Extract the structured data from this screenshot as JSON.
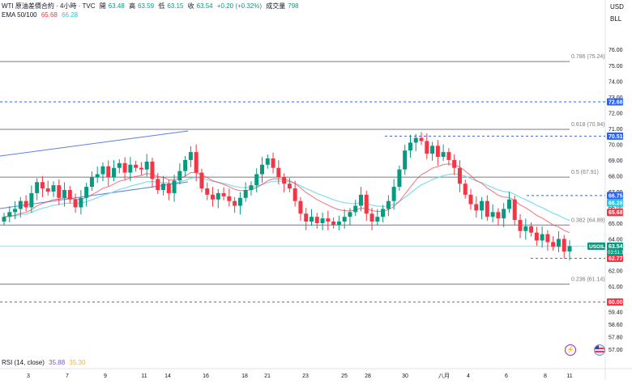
{
  "header": {
    "symbol": "WTI 原油差價合約 · 4小時 · TVC",
    "open_label": "開",
    "open_value": "63.48",
    "high_label": "高",
    "high_value": "63.59",
    "low_label": "低",
    "low_value": "63.15",
    "close_label": "收",
    "close_value": "63.54",
    "change": "+0.20 (+0.32%)",
    "volume_label": "成交量",
    "volume_value": "798"
  },
  "ema": {
    "label": "EMA 50/100",
    "value1": "65.68",
    "value2": "66.28"
  },
  "rsi": {
    "label": "RSI (14, close)",
    "value1": "35.88",
    "value2": "35.30"
  },
  "axis": {
    "currency": "USD",
    "unit": "BLL",
    "price_ticks": [
      "76.00",
      "75.00",
      "74.00",
      "73.00",
      "72.00",
      "71.00",
      "70.00",
      "69.00",
      "68.00",
      "67.00",
      "66.00",
      "65.00",
      "64.00",
      "63.00",
      "62.00",
      "61.00",
      "60.00",
      "59.40",
      "58.60",
      "57.80",
      "57.00"
    ],
    "date_ticks": [
      "3",
      "7",
      "9",
      "11",
      "14",
      "16",
      "18",
      "21",
      "23",
      "25",
      "28",
      "30",
      "八月",
      "4",
      "6",
      "8",
      "11"
    ]
  },
  "levels": [
    {
      "label": "0.786 (75.24)",
      "price": 75.24
    },
    {
      "label": "0.618 (70.94)",
      "price": 70.94
    },
    {
      "label": "0.5 (67.91)",
      "price": 67.91
    },
    {
      "label": "0.382 (64.88)",
      "price": 64.88
    },
    {
      "label": "0.236 (61.14)",
      "price": 61.14
    }
  ],
  "price_tags": [
    {
      "name": "tag-72-68",
      "text": "72.68",
      "price": 72.68,
      "color": "#2962ff"
    },
    {
      "name": "tag-70-51",
      "text": "70.51",
      "price": 70.51,
      "color": "#2962ff"
    },
    {
      "name": "tag-66-75",
      "text": "66.75",
      "price": 66.75,
      "color": "#2962ff"
    },
    {
      "name": "tag-66-28",
      "text": "66.28",
      "price": 66.28,
      "color": "#26c6da"
    },
    {
      "name": "tag-65-68",
      "text": "65.68",
      "price": 65.68,
      "color": "#f23645"
    },
    {
      "name": "tag-current",
      "text": "63.54",
      "sub": "03:51:14",
      "label": "USOIL",
      "price": 63.54,
      "color": "#089981"
    },
    {
      "name": "tag-62-77",
      "text": "62.77",
      "price": 62.77,
      "color": "#f23645"
    },
    {
      "name": "tag-60-00",
      "text": "60.00",
      "price": 60.0,
      "color": "#f23645"
    }
  ],
  "colors": {
    "up": "#089981",
    "down": "#f23645",
    "ema50": "#f23645",
    "ema100": "#80deea",
    "channel": "#5b7fe8",
    "level": "#787b86"
  },
  "chart_data": {
    "type": "candlestick",
    "ylim": [
      56.6,
      77.6
    ],
    "closes": [
      65.4,
      65.7,
      65.9,
      66.4,
      66.0,
      66.9,
      67.6,
      67.2,
      67.0,
      67.4,
      66.6,
      67.1,
      66.5,
      66.0,
      66.6,
      67.3,
      67.9,
      68.1,
      68.6,
      67.9,
      68.5,
      68.8,
      68.2,
      68.7,
      68.5,
      68.4,
      68.9,
      67.8,
      67.1,
      67.5,
      66.9,
      67.7,
      68.3,
      69.0,
      69.5,
      68.2,
      67.2,
      66.8,
      66.5,
      66.9,
      66.7,
      66.4,
      66.1,
      66.6,
      67.1,
      67.4,
      68.1,
      68.7,
      69.1,
      68.5,
      67.9,
      67.5,
      67.2,
      66.4,
      65.6,
      65.1,
      65.4,
      65.0,
      65.3,
      65.1,
      64.9,
      65.1,
      65.4,
      65.7,
      66.1,
      66.8,
      65.6,
      65.1,
      65.4,
      65.9,
      66.4,
      67.3,
      68.4,
      69.6,
      70.1,
      70.4,
      70.2,
      69.4,
      69.9,
      69.2,
      69.5,
      69.0,
      68.5,
      67.5,
      66.8,
      66.2,
      65.8,
      66.4,
      65.4,
      65.7,
      65.3,
      65.9,
      66.5,
      65.2,
      64.5,
      64.8,
      64.4,
      63.9,
      64.3,
      63.8,
      63.5,
      64.0,
      63.2,
      63.54
    ]
  }
}
